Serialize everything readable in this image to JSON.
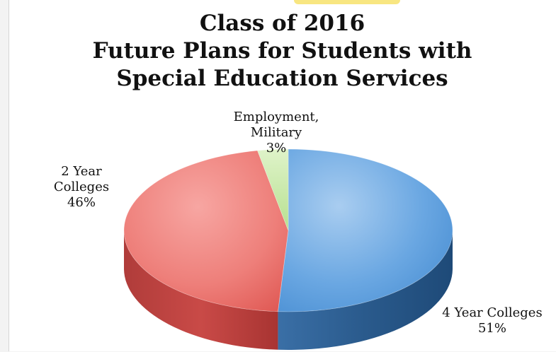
{
  "chart_data": {
    "type": "pie",
    "title_lines": [
      "Class of 2016",
      "Future Plans for Students with",
      "Special Education Services"
    ],
    "slices": [
      {
        "label": "4 Year Colleges",
        "value": 51,
        "value_label": "51%",
        "color": "#5b9bd5"
      },
      {
        "label": "2 Year\nColleges",
        "value": 46,
        "value_label": "46%",
        "color": "#e8605c"
      },
      {
        "label": "Employment,\nMilitary",
        "value": 3,
        "value_label": "3%",
        "color": "#bfe6a0"
      }
    ]
  }
}
